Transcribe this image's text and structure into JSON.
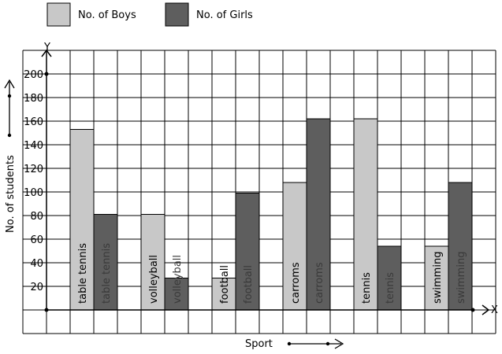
{
  "chart_data": {
    "type": "bar",
    "title": "",
    "xlabel": "Sport",
    "ylabel": "No. of students",
    "x_axis_letter": "X",
    "y_axis_letter": "Y",
    "ylim": [
      0,
      200
    ],
    "yticks": [
      20,
      40,
      60,
      80,
      100,
      120,
      140,
      160,
      180,
      200
    ],
    "grid": true,
    "legend_position": "top-left",
    "categories": [
      "table tennis",
      "volleyball",
      "football",
      "carroms",
      "tennis",
      "swimming"
    ],
    "series": [
      {
        "name": "No. of Boys",
        "color": "#c8c8c8",
        "values": [
          153,
          81,
          27,
          108,
          162,
          54
        ]
      },
      {
        "name": "No. of Girls",
        "color": "#5e5e5e",
        "values": [
          81,
          27,
          99,
          162,
          54,
          108
        ]
      }
    ]
  }
}
